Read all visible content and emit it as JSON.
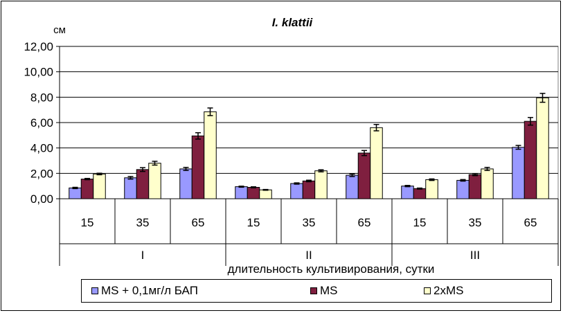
{
  "chart_data": {
    "type": "bar",
    "title": "I. klattii",
    "ylabel": "см",
    "xlabel": "длительность культивирования, сутки",
    "ylim": [
      0,
      12
    ],
    "yticks": [
      "0,00",
      "2,00",
      "4,00",
      "6,00",
      "8,00",
      "10,00",
      "12,00"
    ],
    "grid": true,
    "error_bars": true,
    "categories": [
      "15",
      "35",
      "65",
      "15",
      "35",
      "65",
      "15",
      "35",
      "65"
    ],
    "groups": [
      "I",
      "II",
      "III"
    ],
    "series": [
      {
        "name": "MS + 0,1мг/л БАП",
        "color": "#9999ff",
        "values": [
          0.85,
          1.65,
          2.35,
          0.95,
          1.2,
          1.85,
          1.0,
          1.45,
          4.05
        ],
        "errors": [
          0.05,
          0.1,
          0.12,
          0.04,
          0.05,
          0.1,
          0.05,
          0.06,
          0.15
        ]
      },
      {
        "name": "MS",
        "color": "#7f1f3f",
        "values": [
          1.55,
          2.3,
          4.95,
          0.9,
          1.4,
          3.6,
          0.8,
          1.9,
          6.1
        ],
        "errors": [
          0.05,
          0.15,
          0.25,
          0.04,
          0.06,
          0.2,
          0.04,
          0.08,
          0.3
        ]
      },
      {
        "name": "2xMS",
        "color": "#ffffcc",
        "values": [
          1.95,
          2.8,
          6.85,
          0.7,
          2.2,
          5.6,
          1.5,
          2.35,
          7.95
        ],
        "errors": [
          0.06,
          0.15,
          0.3,
          0.03,
          0.08,
          0.25,
          0.06,
          0.12,
          0.35
        ]
      }
    ]
  }
}
